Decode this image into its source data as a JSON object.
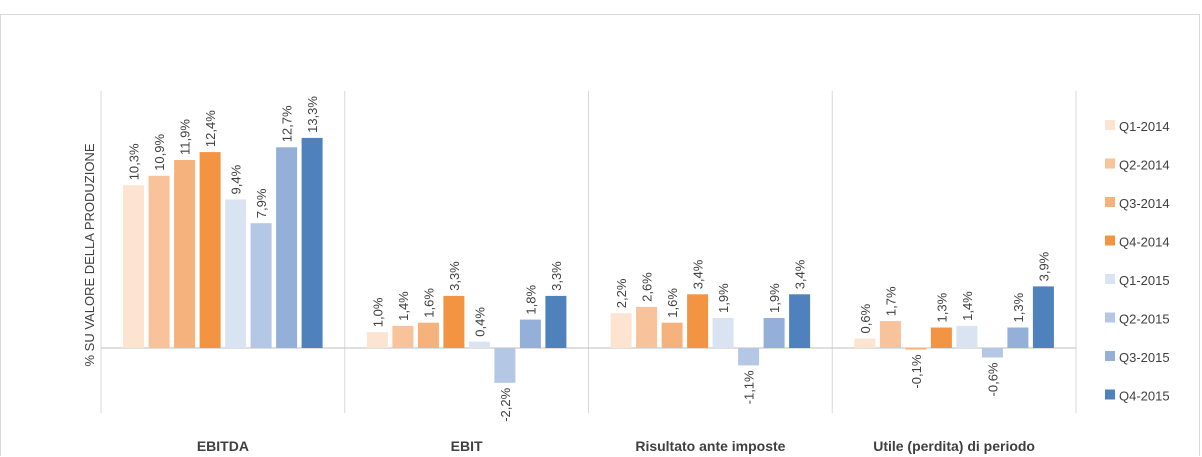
{
  "chart_data": {
    "type": "bar",
    "ylabel": "% SU VALORE DELLA PRODUZIONE",
    "xlabel": "",
    "categories": [
      "EBITDA",
      "EBIT",
      "Risultato ante imposte",
      "Utile (perdita) di periodo"
    ],
    "ylim": [
      -2.8,
      13.6
    ],
    "legend_position": "right",
    "grid": false,
    "series": [
      {
        "name": "Q1-2014",
        "color": "#fce4d0",
        "values": [
          10.3,
          1.0,
          2.2,
          0.6
        ],
        "labels": [
          "10,3%",
          "1,0%",
          "2,2%",
          "0,6%"
        ]
      },
      {
        "name": "Q2-2014",
        "color": "#f8c29a",
        "values": [
          10.9,
          1.4,
          2.6,
          1.7
        ],
        "labels": [
          "10,9%",
          "1,4%",
          "2,6%",
          "1,7%"
        ]
      },
      {
        "name": "Q3-2014",
        "color": "#f6b27d",
        "values": [
          11.9,
          1.6,
          1.6,
          -0.1
        ],
        "labels": [
          "11,9%",
          "1,6%",
          "1,6%",
          "-0,1%"
        ]
      },
      {
        "name": "Q4-2014",
        "color": "#f29442",
        "values": [
          12.4,
          3.3,
          3.4,
          1.3
        ],
        "labels": [
          "12,4%",
          "3,3%",
          "3,4%",
          "1,3%"
        ]
      },
      {
        "name": "Q1-2015",
        "color": "#d9e3f2",
        "values": [
          9.4,
          0.4,
          1.9,
          1.4
        ],
        "labels": [
          "9,4%",
          "0,4%",
          "1,9%",
          "1,4%"
        ]
      },
      {
        "name": "Q2-2015",
        "color": "#b4c7e4",
        "values": [
          7.9,
          -2.2,
          -1.1,
          -0.6
        ],
        "labels": [
          "7,9%",
          "-2,2%",
          "-1,1%",
          "-0,6%"
        ]
      },
      {
        "name": "Q3-2015",
        "color": "#94afd8",
        "values": [
          12.7,
          1.8,
          1.9,
          1.3
        ],
        "labels": [
          "12,7%",
          "1,8%",
          "1,9%",
          "1,3%"
        ]
      },
      {
        "name": "Q4-2015",
        "color": "#4f81bd",
        "values": [
          13.3,
          3.3,
          3.4,
          3.9
        ],
        "labels": [
          "13,3%",
          "3,3%",
          "3,4%",
          "3,9%"
        ]
      }
    ]
  }
}
